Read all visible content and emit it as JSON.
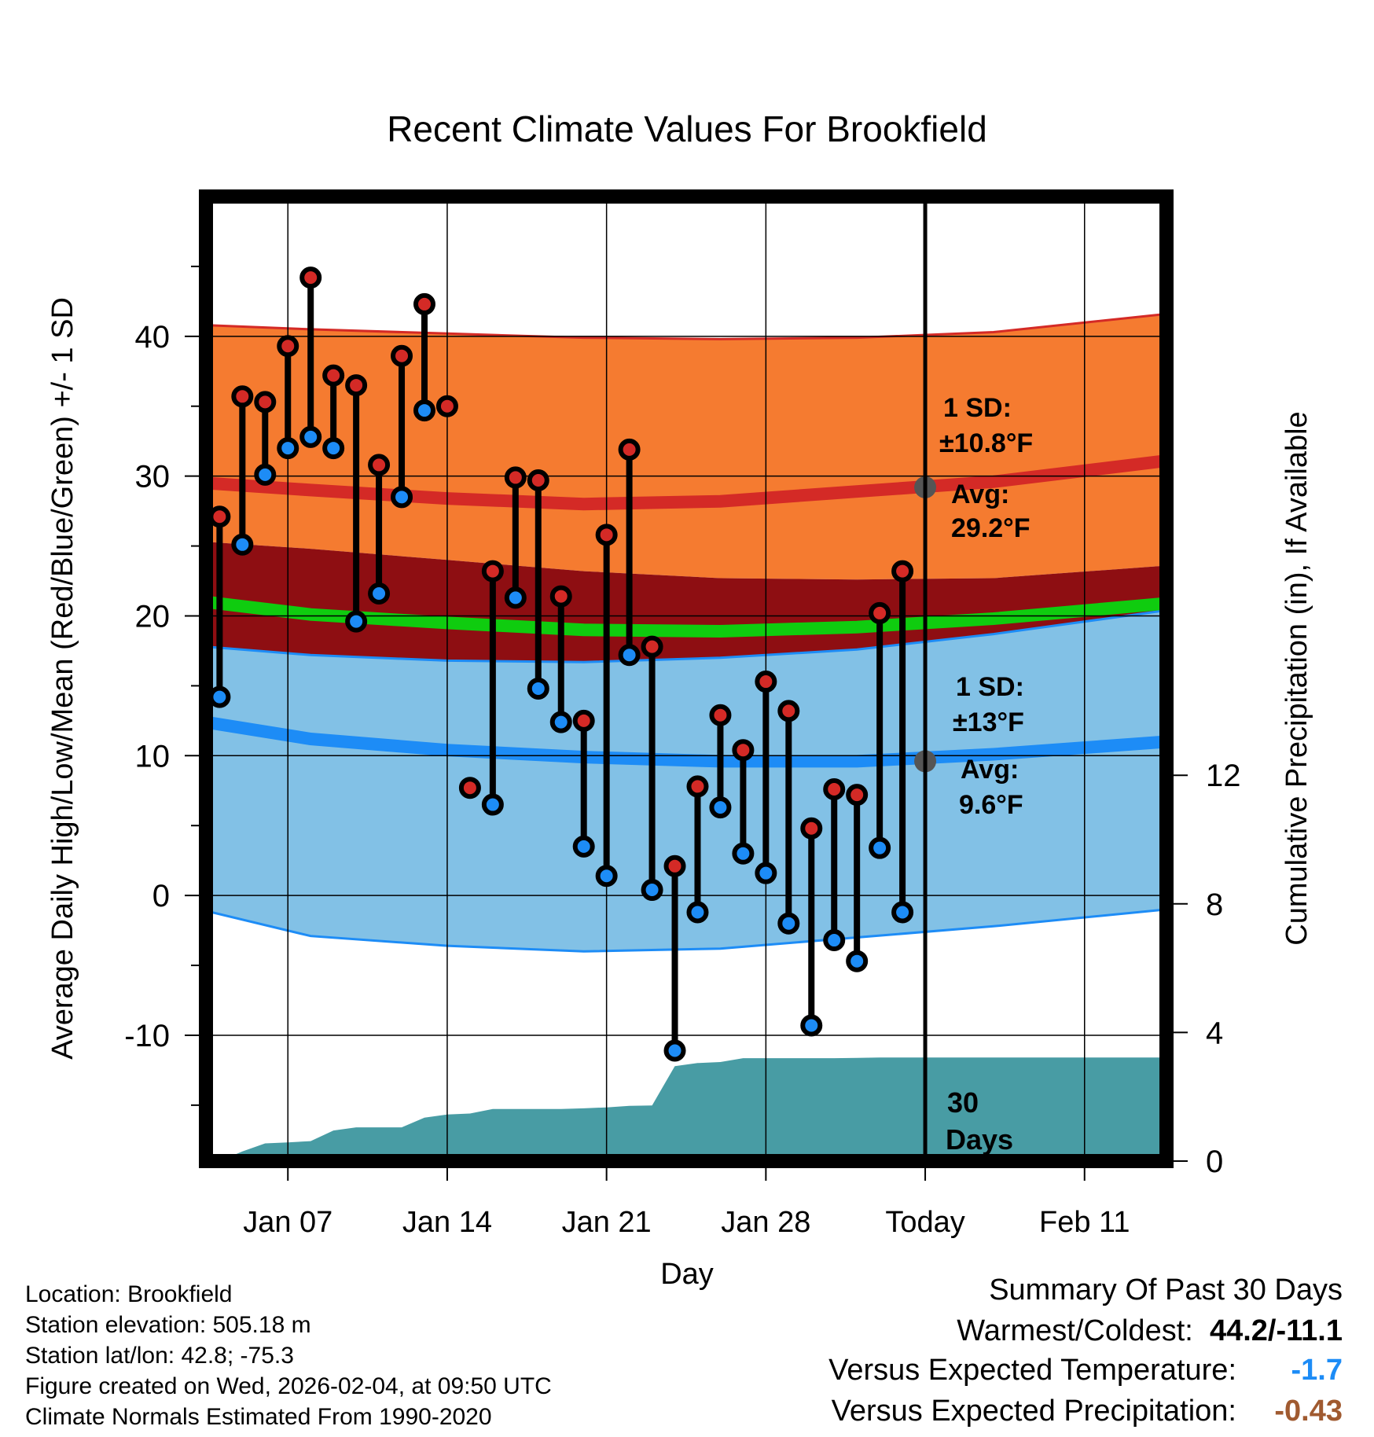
{
  "chart_data": {
    "type": "line",
    "title": "Recent Climate Values For Brookfield",
    "xlabel": "Day",
    "ylabel": "Average Daily High/Low/Mean (Red/Blue/Green) +/- 1 SD",
    "ylabel_right": "Cumulative Precipitation (in), If Available",
    "ylim": [
      -19,
      50
    ],
    "y_ticks": [
      -10,
      0,
      10,
      20,
      30,
      40
    ],
    "y2lim": [
      0,
      30
    ],
    "y2_ticks": [
      0,
      4,
      8,
      12
    ],
    "x_range": [
      3.4,
      45.6
    ],
    "x_ticks": [
      {
        "x": 7,
        "label": "Jan 07"
      },
      {
        "x": 14,
        "label": "Jan 14"
      },
      {
        "x": 21,
        "label": "Jan 21"
      },
      {
        "x": 28,
        "label": "Jan 28"
      },
      {
        "x": 35,
        "label": "Today"
      },
      {
        "x": 42,
        "label": "Feb 11"
      }
    ],
    "today_x": 35,
    "days": [
      4,
      5,
      6,
      7,
      8,
      9,
      10,
      11,
      12,
      13,
      14,
      15,
      16,
      17,
      18,
      19,
      20,
      21,
      22,
      23,
      24,
      25,
      26,
      27,
      28,
      29,
      30,
      31,
      32,
      33,
      34
    ],
    "highs": [
      27.1,
      35.7,
      35.3,
      39.3,
      44.2,
      37.2,
      36.5,
      30.8,
      38.6,
      42.3,
      35.0,
      7.7,
      23.2,
      29.9,
      29.7,
      21.4,
      12.5,
      25.8,
      31.9,
      17.8,
      2.1,
      7.8,
      12.9,
      10.4,
      15.3,
      13.2,
      4.8,
      7.6,
      7.2,
      20.2,
      23.2
    ],
    "lows": [
      14.2,
      25.1,
      30.1,
      32.0,
      32.8,
      32.0,
      19.6,
      21.6,
      28.5,
      34.7,
      null,
      null,
      6.5,
      21.3,
      14.8,
      12.4,
      3.5,
      1.4,
      17.2,
      0.4,
      -11.1,
      -1.2,
      6.3,
      3.0,
      1.6,
      -2.0,
      -9.3,
      -3.2,
      -4.7,
      3.4,
      -1.2
    ],
    "normal_high": {
      "x": [
        3.4,
        8,
        14,
        20,
        26,
        32,
        38,
        45.6
      ],
      "mean": [
        29.5,
        29.0,
        28.4,
        28.0,
        28.2,
        28.9,
        29.6,
        31.1
      ],
      "upper": [
        40.8,
        40.5,
        40.2,
        39.9,
        39.8,
        39.9,
        40.3,
        41.6
      ],
      "lower": [
        25.3,
        24.8,
        24.0,
        23.2,
        22.7,
        22.6,
        22.7,
        23.6
      ]
    },
    "normal_low": {
      "x": [
        3.4,
        8,
        14,
        20,
        26,
        32,
        38,
        45.6
      ],
      "mean": [
        12.4,
        11.2,
        10.4,
        9.9,
        9.6,
        9.6,
        10.1,
        11.0
      ],
      "upper": [
        17.8,
        17.2,
        16.8,
        16.7,
        17.0,
        17.6,
        18.7,
        20.4
      ],
      "lower": [
        -1.1,
        -2.9,
        -3.6,
        -4.0,
        -3.8,
        -3.0,
        -2.2,
        -1.0
      ]
    },
    "normal_mean": {
      "x": [
        3.4,
        8,
        14,
        20,
        26,
        32,
        38,
        45.6
      ],
      "values": [
        21.0,
        20.1,
        19.5,
        19.0,
        18.9,
        19.2,
        19.8,
        20.9
      ]
    },
    "precip": {
      "x": [
        4,
        5,
        6,
        7,
        8,
        9,
        10,
        11,
        12,
        13,
        14,
        15,
        16,
        17,
        18,
        19,
        20,
        21,
        22,
        23,
        24,
        25,
        26,
        27,
        28,
        29,
        30,
        31,
        32,
        33,
        34,
        35,
        45.6
      ],
      "values": [
        0.0,
        0.3,
        0.55,
        0.58,
        0.62,
        0.95,
        1.05,
        1.05,
        1.05,
        1.35,
        1.45,
        1.48,
        1.62,
        1.62,
        1.62,
        1.62,
        1.64,
        1.67,
        1.72,
        1.73,
        2.95,
        3.05,
        3.08,
        3.2,
        3.2,
        3.2,
        3.2,
        3.2,
        3.21,
        3.22,
        3.22,
        3.22,
        3.22
      ]
    },
    "annotations": {
      "high_sd_label": "1 SD:",
      "high_sd_value": "±10.8°F",
      "high_avg_label": "Avg:",
      "high_avg_value": "29.2°F",
      "high_avg": 29.2,
      "low_sd_label": "1 SD:",
      "low_sd_value": "±13°F",
      "low_avg_label": "Avg:",
      "low_avg_value": "9.6°F",
      "low_avg": 9.6,
      "days_label_1": "30",
      "days_label_2": "Days"
    },
    "colors": {
      "high_band": "#f57b30",
      "high_band_edge": "#d42a26",
      "high_line": "#d42a26",
      "overlap_band": "#8e0e12",
      "low_band": "#82c1e6",
      "low_band_edge": "#1d8cf6",
      "low_line": "#1d8cf6",
      "mean_line": "#0fcc0f",
      "precip_fill": "#489ca4",
      "high_dot": "#d42a26",
      "low_dot": "#1d8cf6",
      "annotation": "#555555"
    }
  },
  "metadata": {
    "location": "Location: Brookfield",
    "elevation": "Station elevation: 505.18 m",
    "latlon": "Station lat/lon: 42.8; -75.3",
    "created": "Figure created on Wed, 2026-02-04, at 09:50 UTC",
    "normals": "Climate Normals Estimated From 1990-2020"
  },
  "summary": {
    "title": "Summary Of Past 30 Days",
    "warm_cold_label": "Warmest/Coldest:",
    "warm_cold_value": "44.2/-11.1",
    "temp_label": "Versus Expected Temperature:",
    "temp_value": "-1.7",
    "temp_color": "#1d8cf6",
    "precip_label": "Versus Expected Precipitation:",
    "precip_value": "-0.43",
    "precip_color": "#a05a30"
  }
}
